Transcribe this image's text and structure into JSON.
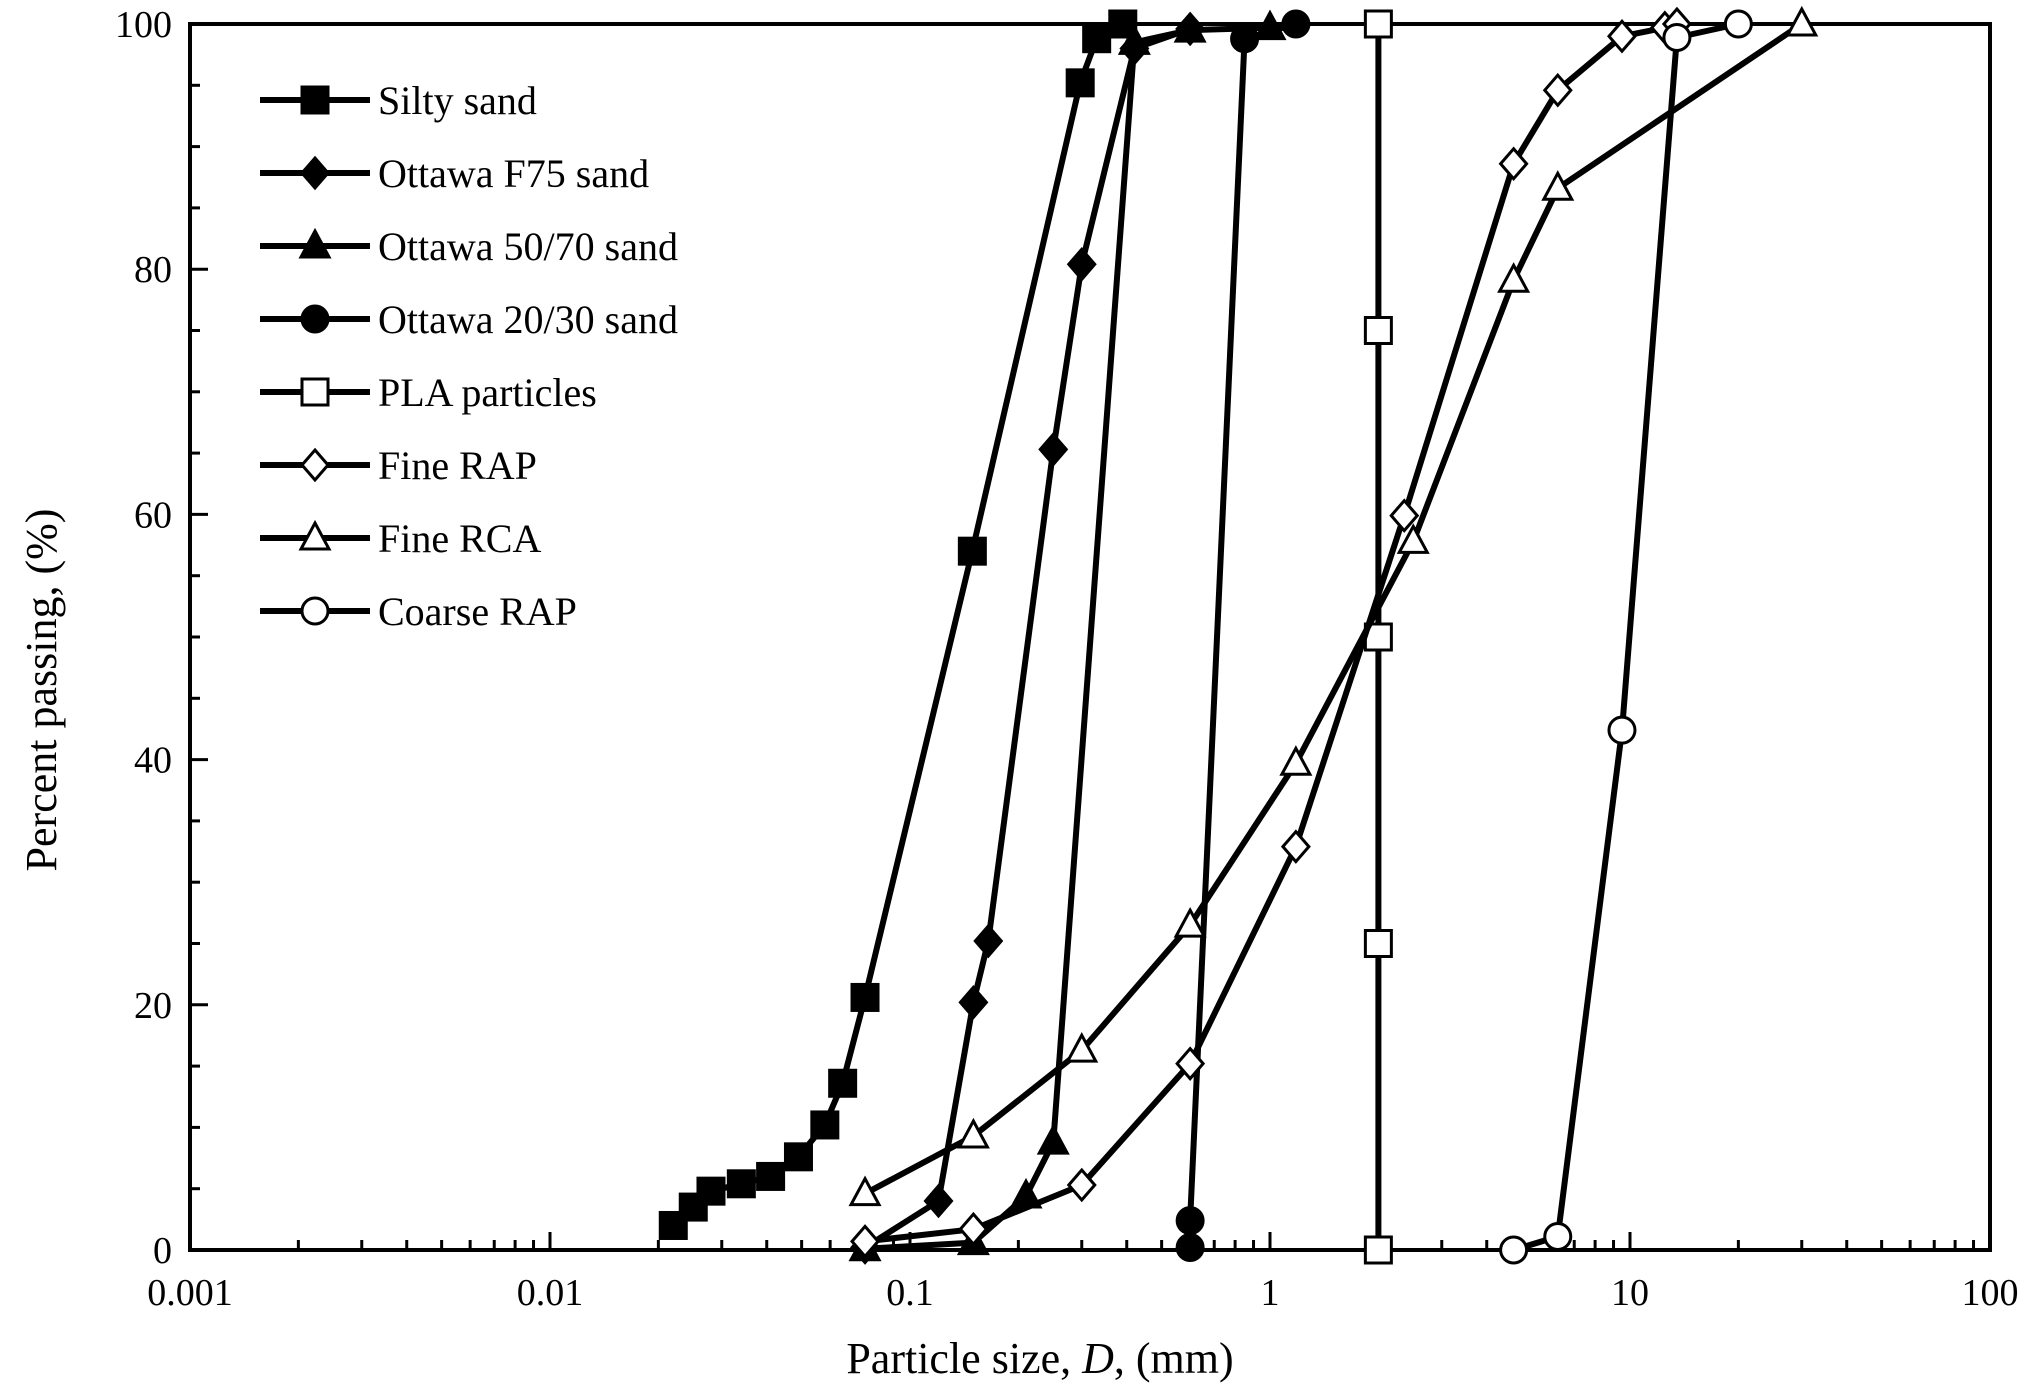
{
  "chart_data": {
    "type": "line",
    "title": "",
    "xlabel_prefix": "Particle size, ",
    "xlabel_var": "D",
    "xlabel_suffix": ", (mm)",
    "ylabel": "Percent passing, (%)",
    "xscale": "log",
    "xlim": [
      0.001,
      100
    ],
    "ylim": [
      0,
      100
    ],
    "x_ticks": [
      0.001,
      0.01,
      0.1,
      1,
      10,
      100
    ],
    "x_tick_labels": [
      "0.001",
      "0.01",
      "0.1",
      "1",
      "10",
      "100"
    ],
    "y_ticks": [
      0,
      20,
      40,
      60,
      80,
      100
    ],
    "y_tick_labels": [
      "0",
      "20",
      "40",
      "60",
      "80",
      "100"
    ],
    "legend_position": "top-left",
    "series": [
      {
        "name": "Silty sand",
        "marker": "square",
        "filled": true,
        "x": [
          0.022,
          0.025,
          0.028,
          0.034,
          0.041,
          0.049,
          0.058,
          0.065,
          0.075,
          0.149,
          0.297,
          0.33,
          0.39
        ],
        "y": [
          2.0,
          3.5,
          4.8,
          5.4,
          6.0,
          7.6,
          10.2,
          13.6,
          20.6,
          57.0,
          95.2,
          98.8,
          100.0
        ]
      },
      {
        "name": "Ottawa F75 sand",
        "marker": "diamond",
        "filled": true,
        "x": [
          0.075,
          0.12,
          0.15,
          0.165,
          0.25,
          0.3,
          0.42,
          0.6
        ],
        "y": [
          0.2,
          4.0,
          20.2,
          25.2,
          65.3,
          80.4,
          98.0,
          99.6
        ]
      },
      {
        "name": "Ottawa 50/70 sand",
        "marker": "triangle",
        "filled": true,
        "x": [
          0.075,
          0.15,
          0.21,
          0.25,
          0.42,
          0.6,
          1.0
        ],
        "y": [
          0.1,
          0.6,
          4.4,
          8.8,
          98.5,
          99.5,
          99.7
        ]
      },
      {
        "name": "Ottawa 20/30 sand",
        "marker": "circle",
        "filled": true,
        "x": [
          0.6,
          0.6,
          0.85,
          1.18
        ],
        "y": [
          0.2,
          2.4,
          98.8,
          100.0
        ]
      },
      {
        "name": "PLA particles",
        "marker": "square",
        "filled": false,
        "x": [
          2.0,
          2.0,
          2.0,
          2.0,
          2.0
        ],
        "y": [
          0.0,
          25.0,
          50.0,
          75.0,
          100.0
        ]
      },
      {
        "name": "Fine RAP",
        "marker": "diamond",
        "filled": false,
        "x": [
          0.075,
          0.15,
          0.3,
          0.6,
          1.18,
          2.36,
          4.75,
          6.3,
          9.5,
          12.5,
          13.5
        ],
        "y": [
          0.7,
          1.7,
          5.3,
          15.2,
          32.9,
          59.9,
          88.6,
          94.6,
          99.0,
          99.7,
          100.0
        ]
      },
      {
        "name": "Fine RCA",
        "marker": "triangle",
        "filled": false,
        "x": [
          0.075,
          0.15,
          0.3,
          0.6,
          1.18,
          2.5,
          4.75,
          6.3,
          30.0
        ],
        "y": [
          4.6,
          9.3,
          16.3,
          26.5,
          39.7,
          57.8,
          79.1,
          86.6,
          100.0
        ]
      },
      {
        "name": "Coarse RAP",
        "marker": "circle",
        "filled": false,
        "x": [
          4.75,
          6.3,
          9.5,
          13.5,
          20.0
        ],
        "y": [
          0.0,
          1.1,
          42.4,
          98.9,
          100.0
        ]
      }
    ]
  }
}
